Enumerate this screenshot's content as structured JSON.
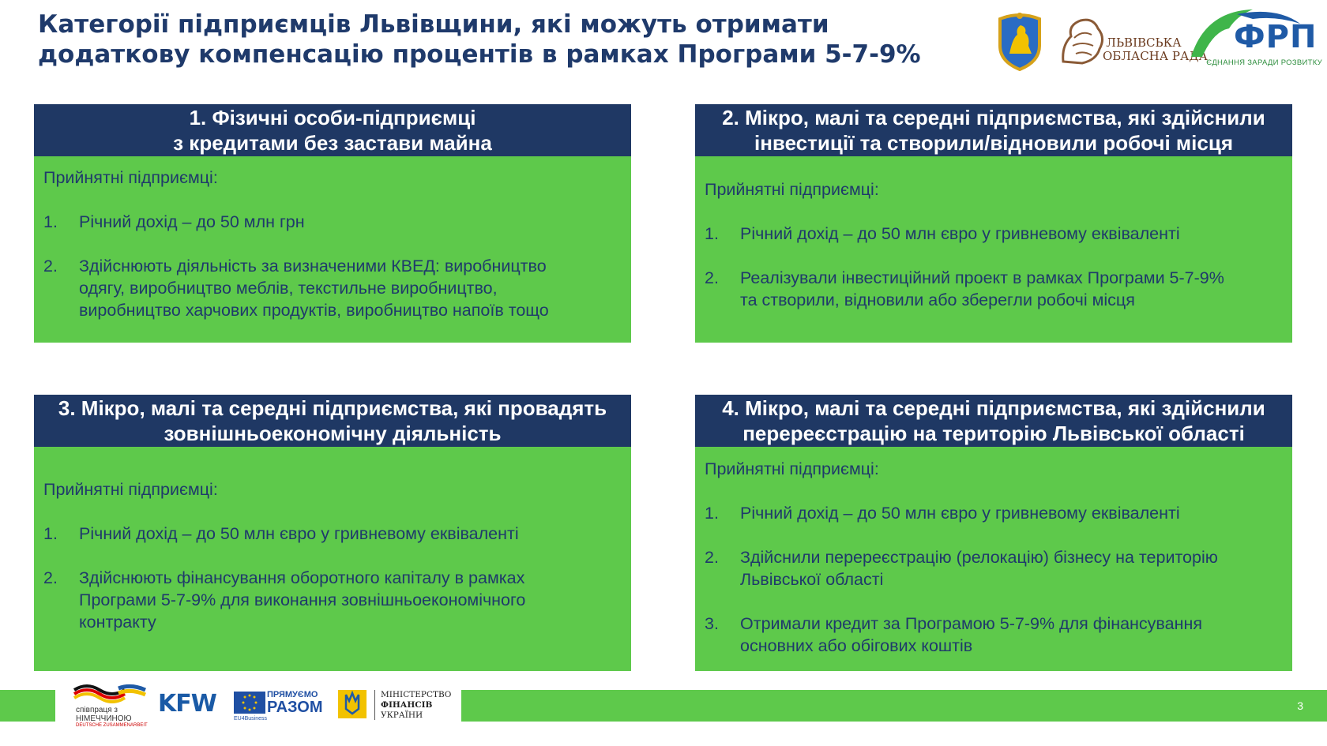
{
  "title": {
    "line1": "Категорії підприємців Львівщини, які можуть отримати",
    "line2": "додаткову компенсацію процентів в рамках Програми 5-7-9%"
  },
  "logos": {
    "council_line1": "ЛЬВІВСЬКА",
    "council_line2": "ОБЛАСНА РАДА",
    "frp_name": "ФРП",
    "frp_tagline": "ЄДНАННЯ ЗАРАДИ РОЗВИТКУ"
  },
  "cards": [
    {
      "head_line1": "1. Фізичні особи-підприємці",
      "head_line2": "з кредитами без застави майна",
      "intro": "Прийнятні підприємці:",
      "items": [
        {
          "num": "1.",
          "lines": [
            "Річний дохід – до 50 млн грн"
          ]
        },
        {
          "num": "2.",
          "lines": [
            "Здійснюють діяльність за визначеними КВЕД: виробництво",
            "одягу, виробництво меблів, текстильне виробництво,",
            "виробництво харчових продуктів, виробництво напоїв тощо"
          ]
        }
      ]
    },
    {
      "head_line1": "2. Мікро, малі та середні підприємства, які здійснили",
      "head_line2": "інвестиції та створили/відновили робочі місця",
      "intro": "Прийнятні підприємці:",
      "items": [
        {
          "num": "1.",
          "lines": [
            "Річний дохід – до 50 млн євро у гривневому еквіваленті"
          ]
        },
        {
          "num": "2.",
          "lines": [
            "Реалізували інвестиційний проект в рамках Програми 5-7-9%",
            "та створили, відновили або зберегли робочі місця"
          ]
        }
      ]
    },
    {
      "head_line1": "3. Мікро, малі та середні підприємства, які провадять",
      "head_line2": "зовнішньоекономічну діяльність",
      "intro": "Прийнятні підприємці:",
      "items": [
        {
          "num": "1.",
          "lines": [
            "Річний дохід – до 50 млн євро у гривневому еквіваленті"
          ]
        },
        {
          "num": "2.",
          "lines": [
            "Здійснюють фінансування оборотного капіталу в рамках",
            "Програми 5-7-9% для виконання зовнішньоекономічного",
            "контракту"
          ]
        }
      ]
    },
    {
      "head_line1": "4. Мікро, малі та середні підприємства, які здійснили",
      "head_line2": "перереєстрацію на територію Львівської області",
      "intro": "Прийнятні підприємці:",
      "items": [
        {
          "num": "1.",
          "lines": [
            "Річний дохід – до 50 млн євро у гривневому еквіваленті"
          ]
        },
        {
          "num": "2.",
          "lines": [
            "Здійснили перереєстрацію (релокацію) бізнесу на територію",
            "Львівської області"
          ]
        },
        {
          "num": "3.",
          "lines": [
            "Отримали кредит за Програмою 5-7-9% для фінансування",
            "основних або обігових коштів"
          ]
        }
      ]
    }
  ],
  "footer": {
    "german_line1": "співпраця з",
    "german_line2": "НІМЕЧЧИНОЮ",
    "german_small": "DEUTSCHE ZUSAMMENARBEIT",
    "kfw": "KFW",
    "eu_line1": "ПРЯМУЄМО",
    "eu_line2": "РАЗОМ",
    "eu_line3": "EU4Business",
    "minfin_line1": "МІНІСТЕРСТВО",
    "minfin_line2": "ФІНАНСІВ",
    "minfin_line3": "УКРАЇНИ",
    "page_number": "3"
  },
  "colors": {
    "header_navy": "#1f3864",
    "card_green": "#5ec94b",
    "title_blue": "#1f3a6b"
  }
}
